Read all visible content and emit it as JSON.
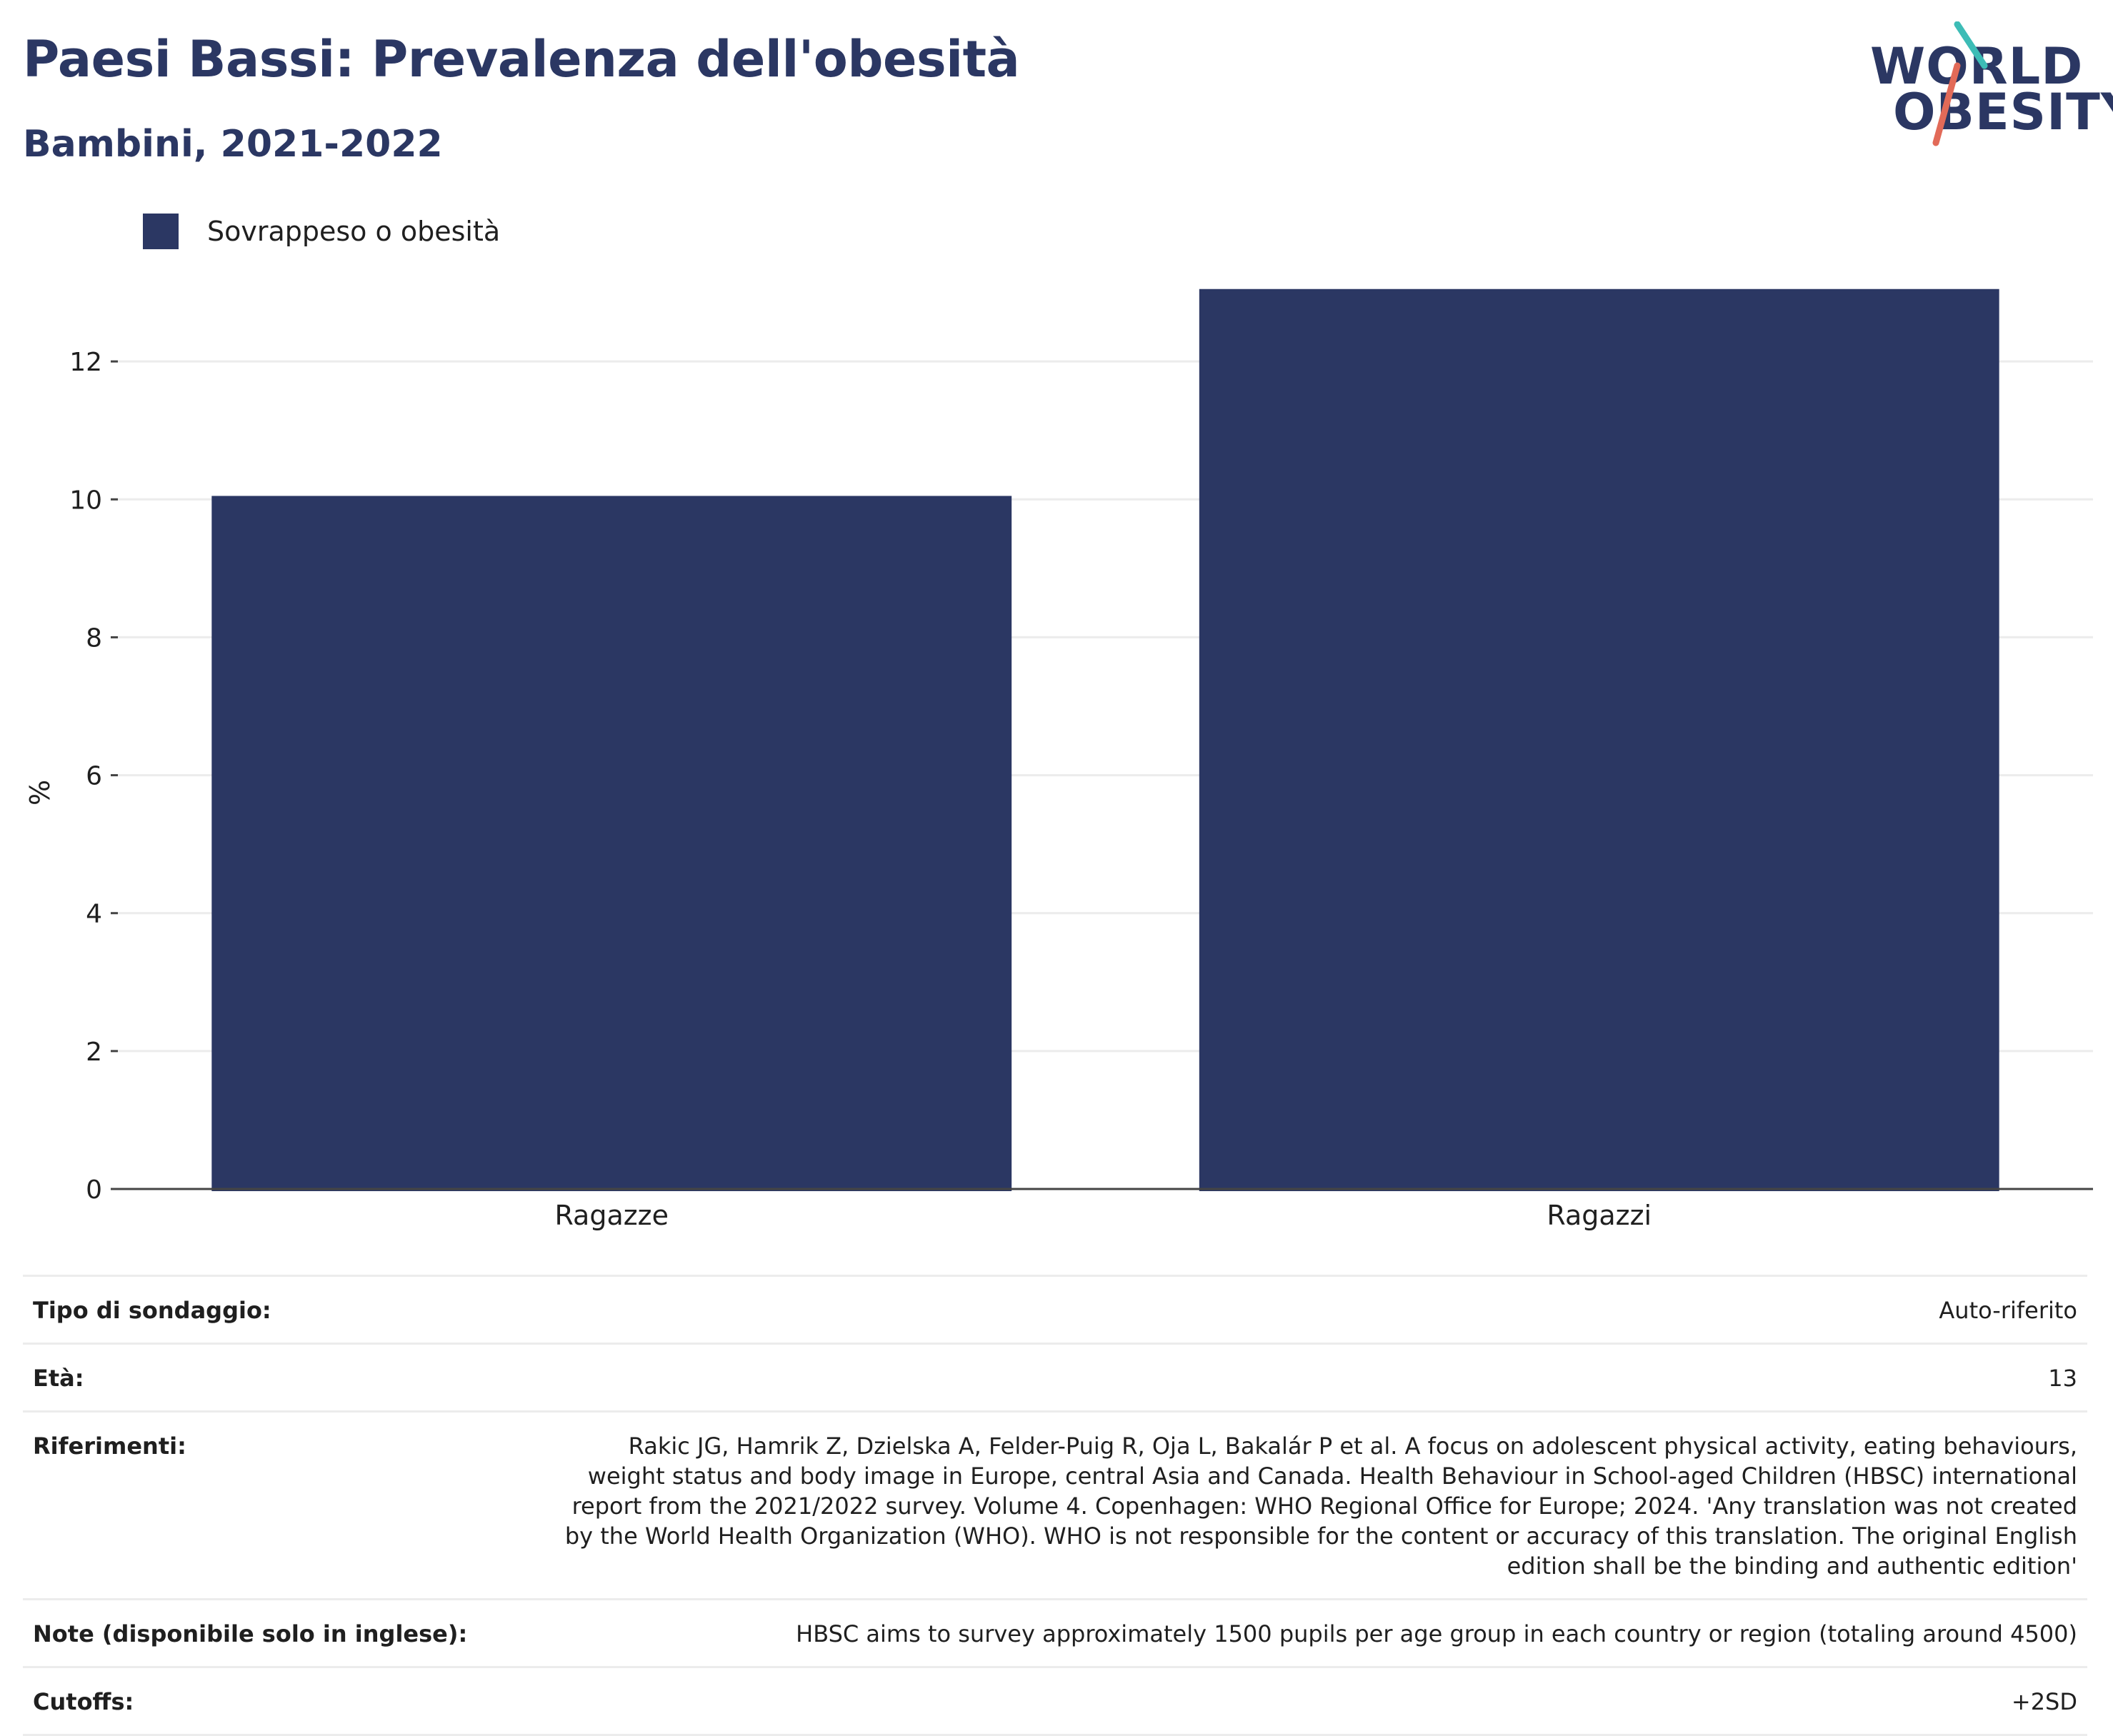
{
  "header": {
    "title": "Paesi Bassi: Prevalenza dell'obesità",
    "subtitle": "Bambini, 2021-2022"
  },
  "logo": {
    "line1": "WORLD",
    "line2": "OBESITY"
  },
  "colors": {
    "bar": "#2b3763",
    "title": "#2b3763",
    "logo_teal": "#3dbcb6",
    "logo_coral": "#e26a58"
  },
  "chart_data": {
    "type": "bar",
    "categories": [
      "Ragazze",
      "Ragazzi"
    ],
    "series": [
      {
        "name": "Sovrappeso o obesità",
        "values": [
          10.05,
          13.05
        ]
      }
    ],
    "ylabel": "%",
    "xlabel": "",
    "ylim": [
      0,
      14
    ],
    "yticks": [
      0,
      2,
      4,
      6,
      8,
      10,
      12
    ],
    "grid": true,
    "legend": "top-left"
  },
  "info": [
    {
      "key": "Tipo di sondaggio:",
      "value": "Auto-riferito"
    },
    {
      "key": "Età:",
      "value": "13"
    },
    {
      "key": "Riferimenti:",
      "value": "Rakic JG, Hamrik Z, Dzielska A, Felder-Puig R, Oja L, Bakalár P et al. A focus on adolescent physical activity, eating behaviours, weight status and body image in Europe, central Asia and Canada. Health Behaviour in School-aged Children (HBSC) international report from the 2021/2022 survey. Volume 4. Copenhagen: WHO Regional Office for Europe; 2024. 'Any translation was not created by the World Health Organization (WHO). WHO is not responsible for the content or accuracy of this translation. The original English edition shall be the binding and authentic edition'"
    },
    {
      "key": "Note (disponibile solo in inglese):",
      "value": "HBSC aims to survey approximately 1500 pupils per age group in each country or region (totaling around 4500)"
    },
    {
      "key": "Cutoffs:",
      "value": "+2SD"
    }
  ]
}
